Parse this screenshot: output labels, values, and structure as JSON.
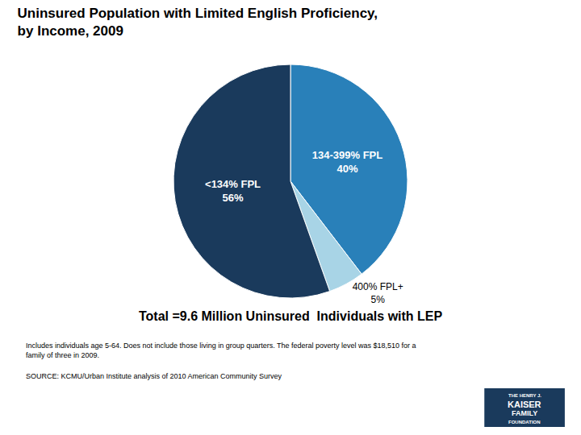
{
  "chart_data": {
    "type": "pie",
    "title": "Uninsured Population with Limited English Proficiency,\nby Income, 2009",
    "subtitle": "Total =9.6 Million Uninsured  Individuals with LEP",
    "categories": [
      "134-399% FPL",
      "400% FPL+",
      "<134% FPL"
    ],
    "values": [
      40,
      5,
      56
    ],
    "value_labels": [
      "40%",
      "5%",
      "56%"
    ],
    "colors": [
      "#2980b9",
      "#a8d4e6",
      "#1a3a5c"
    ],
    "data_labels": true,
    "footnotes": [
      "Includes individuals age 5-64. Does not include those living in group quarters. The federal poverty level was $18,510 for a\nfamily of three in 2009.",
      "SOURCE: KCMU/Urban Institute analysis of 2010 American Community Survey"
    ],
    "logo": [
      "THE HENRY J.",
      "KAISER",
      "FAMILY",
      "FOUNDATION"
    ]
  }
}
